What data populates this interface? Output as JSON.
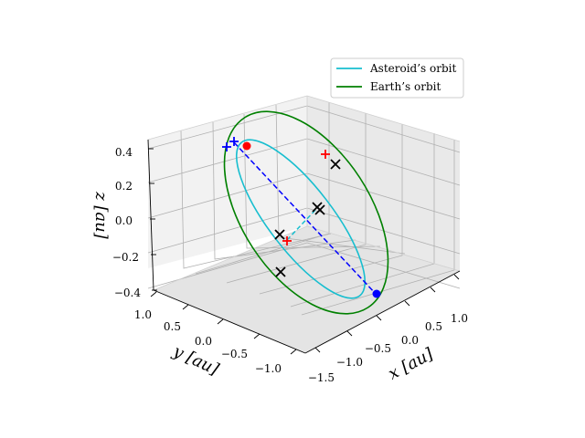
{
  "chart_data": {
    "type": "line3d",
    "title": "",
    "legend": {
      "placement": "top-right",
      "entries": [
        {
          "label": "Asteroid’s orbit",
          "color": "#17becf"
        },
        {
          "label": "Earth’s orbit",
          "color": "#008000"
        }
      ]
    },
    "axes": {
      "x": {
        "label": "x [au]",
        "ticks": [
          "−1.5",
          "−1.0",
          "−0.5",
          "0.0",
          "0.5",
          "1.0"
        ]
      },
      "y": {
        "label": "y [au]",
        "ticks": [
          "1.0",
          "0.5",
          "0.0",
          "−0.5",
          "−1.0"
        ]
      },
      "z": {
        "label": "z [au]",
        "ticks": [
          "0.4",
          "0.2",
          "0.0",
          "−0.2",
          "−0.4"
        ]
      },
      "grid": true
    },
    "series": [
      {
        "name": "Asteroid’s orbit",
        "kind": "ellipse",
        "color": "#17becf"
      },
      {
        "name": "Earth’s orbit",
        "kind": "ellipse",
        "color": "#008000"
      },
      {
        "kind": "dashed-segment",
        "color": "#0000ff"
      },
      {
        "kind": "dashed-segment",
        "color": "#17becf"
      }
    ],
    "markers": {
      "red_dot": {
        "color": "#ff0000"
      },
      "blue_dot": {
        "color": "#0000ff"
      },
      "red_plus_color": "#ff0000",
      "blue_plus_color": "#0000ff",
      "black_cross_color": "#000000"
    }
  }
}
